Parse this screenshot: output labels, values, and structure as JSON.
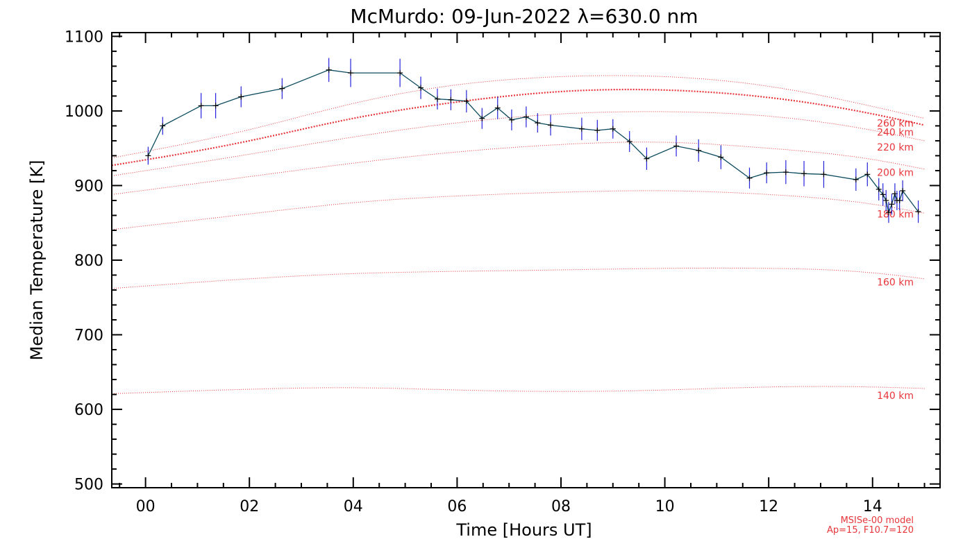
{
  "chart_data": {
    "type": "line",
    "title": "McMurdo: 09-Jun-2022 λ=630.0 nm",
    "xlabel": "Time [Hours UT]",
    "ylabel": "Median Temperature [K]",
    "xlim": [
      -0.65,
      15.3
    ],
    "ylim": [
      495,
      1105
    ],
    "x_tick_values": [
      0,
      2,
      4,
      6,
      8,
      10,
      12,
      14
    ],
    "x_tick_labels": [
      "00",
      "02",
      "04",
      "06",
      "08",
      "10",
      "12",
      "14"
    ],
    "y_ticks": [
      500,
      600,
      700,
      800,
      900,
      1000,
      1100
    ],
    "grid": false,
    "colors": {
      "data_line": "#0b4a5e",
      "error_bar": "#2323d9",
      "marker": "#000000",
      "model": "#e8353a",
      "axes": "#000000"
    },
    "series": [
      {
        "x": [
          0.05,
          0.33,
          1.07,
          1.35,
          1.84,
          2.63,
          3.53,
          3.95,
          4.9,
          5.3,
          5.62,
          5.88,
          6.18,
          6.48,
          6.78,
          7.05,
          7.33,
          7.55,
          7.8,
          8.4,
          8.7,
          9.0,
          9.32,
          9.65,
          10.22,
          10.65,
          11.08,
          11.63,
          11.96,
          12.33,
          12.68,
          13.06,
          13.68,
          13.9,
          14.12,
          14.2,
          14.26,
          14.31,
          14.37,
          14.43,
          14.47,
          14.52,
          14.58,
          14.88
        ],
        "values": [
          940,
          980,
          1007,
          1007,
          1019,
          1030,
          1055,
          1051,
          1051,
          1031,
          1016,
          1015,
          1013,
          990,
          1004,
          988,
          992,
          984,
          981,
          976,
          974,
          976,
          959,
          936,
          953,
          947,
          938,
          910,
          917,
          918,
          916,
          915,
          908,
          915,
          895,
          888,
          880,
          864,
          875,
          889,
          880,
          880,
          893,
          865
        ],
        "errors": [
          12,
          12,
          17,
          17,
          14,
          14,
          16,
          19,
          19,
          15,
          14,
          14,
          15,
          14,
          15,
          14,
          14,
          13,
          14,
          15,
          14,
          13,
          14,
          15,
          14,
          15,
          16,
          14,
          14,
          16,
          17,
          18,
          15,
          16,
          15,
          15,
          14,
          14,
          14,
          14,
          13,
          13,
          14,
          15
        ]
      }
    ],
    "model_curves": [
      {
        "label": "140 km",
        "x": [
          -0.65,
          2,
          4,
          6,
          8,
          10,
          12,
          14,
          15
        ],
        "values": [
          621,
          627,
          629,
          626,
          624,
          626,
          630,
          630,
          628
        ]
      },
      {
        "label": "160 km",
        "x": [
          -0.65,
          2,
          4,
          6,
          8,
          10,
          12,
          14,
          15
        ],
        "values": [
          762,
          775,
          782,
          785,
          787,
          789,
          789,
          783,
          775
        ]
      },
      {
        "label": "180 km",
        "x": [
          -0.65,
          2,
          4,
          6,
          8,
          10,
          12,
          14,
          15
        ],
        "values": [
          841,
          862,
          877,
          886,
          891,
          893,
          888,
          875,
          863
        ]
      },
      {
        "label": "200 km",
        "x": [
          -0.65,
          2,
          4,
          6,
          8,
          10,
          12,
          14,
          15
        ],
        "values": [
          888,
          912,
          930,
          945,
          955,
          958,
          950,
          935,
          922
        ]
      },
      {
        "label": "220 km",
        "x": [
          -0.65,
          2,
          4,
          6,
          8,
          10,
          12,
          14,
          15
        ],
        "values": [
          913,
          942,
          965,
          984,
          996,
          999,
          993,
          974,
          960
        ]
      },
      {
        "label": "240 km",
        "x": [
          -0.65,
          2,
          4,
          6,
          8,
          10,
          12,
          14,
          15
        ],
        "values": [
          927,
          960,
          990,
          1012,
          1026,
          1028,
          1018,
          996,
          981
        ]
      },
      {
        "label": "260 km",
        "x": [
          -0.65,
          2,
          4,
          6,
          8,
          10,
          12,
          14,
          15
        ],
        "values": [
          937,
          975,
          1010,
          1035,
          1046,
          1046,
          1033,
          1006,
          990
        ]
      }
    ],
    "model_label_positions": [
      {
        "label": "260 km",
        "y": 979
      },
      {
        "label": "240 km",
        "y": 967
      },
      {
        "label": "220 km",
        "y": 947
      },
      {
        "label": "200 km",
        "y": 913
      },
      {
        "label": "180 km",
        "y": 857
      },
      {
        "label": "160 km",
        "y": 766
      },
      {
        "label": "140 km",
        "y": 614
      }
    ],
    "annotations": [
      "MSISe-00 model",
      "Ap=15, F10.7=120"
    ]
  }
}
